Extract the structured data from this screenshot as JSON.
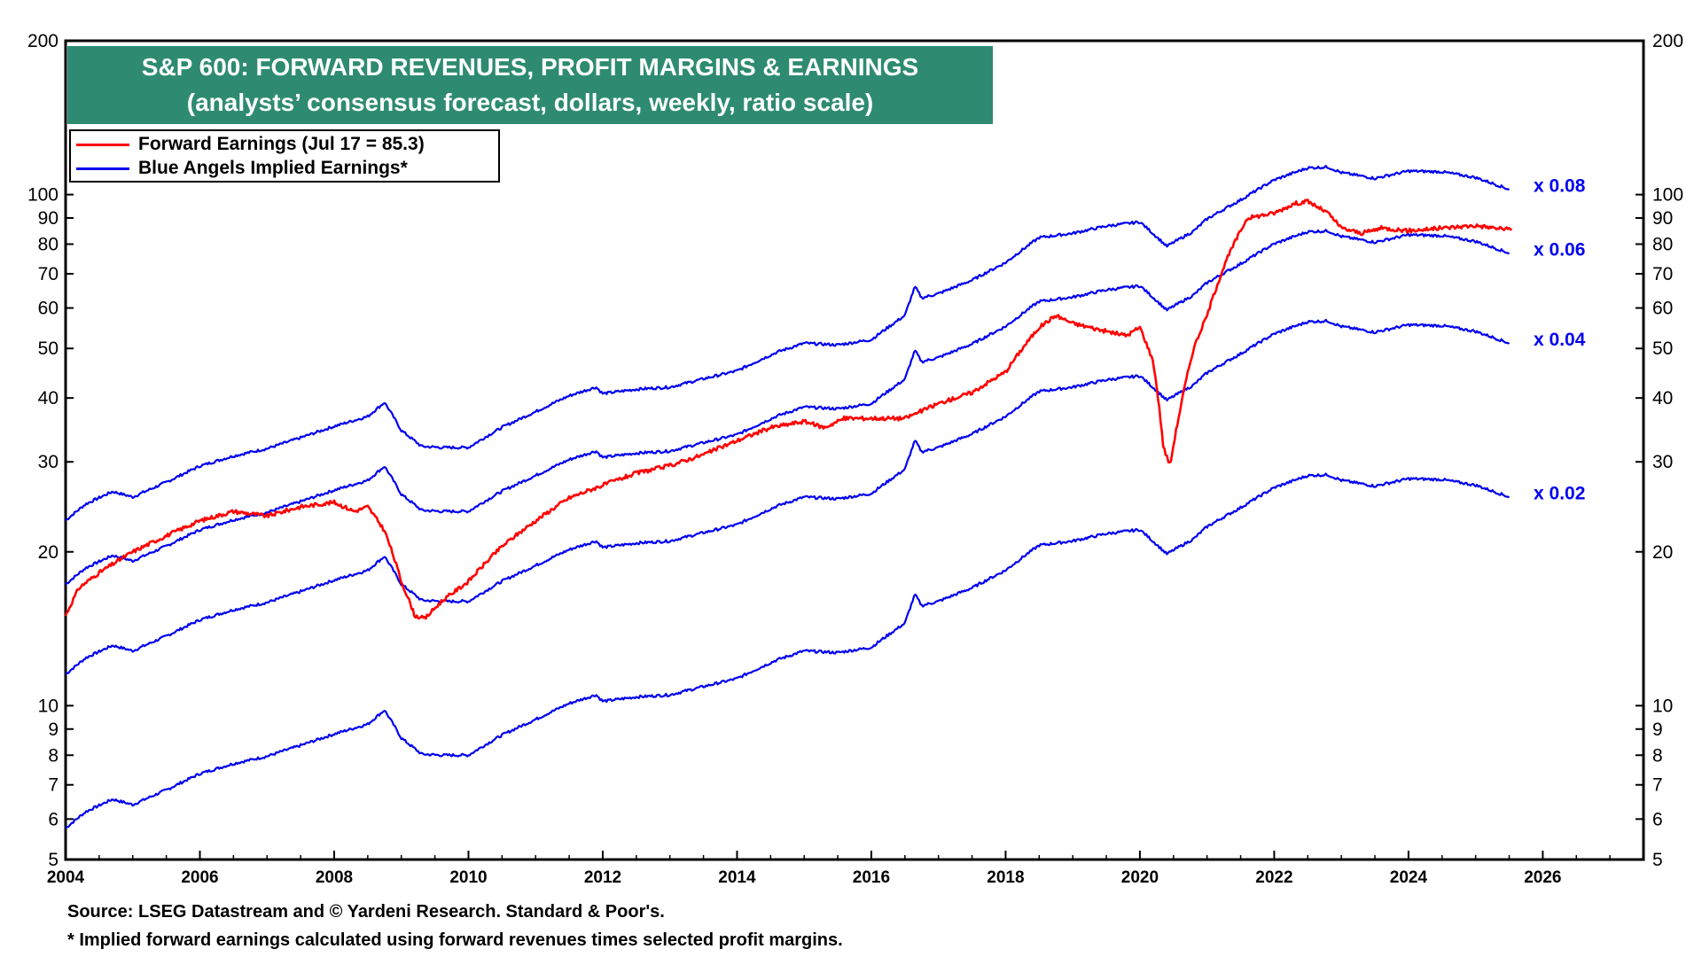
{
  "title": {
    "line1": "S&P 600: FORWARD REVENUES, PROFIT MARGINS & EARNINGS",
    "line2": "(analysts’ consensus forecast, dollars, weekly, ratio scale)"
  },
  "legend": [
    {
      "label": "Forward Earnings (Jul 17 = 85.3)",
      "color": "#ff0000"
    },
    {
      "label": "Blue Angels Implied Earnings*",
      "color": "#0000ee"
    }
  ],
  "footnotes": {
    "source": "Source: LSEG Datastream and © Yardeni Research. Standard & Poor's.",
    "note": "* Implied forward earnings calculated using forward revenues times selected profit margins."
  },
  "chart_data": {
    "type": "line",
    "scale": "log",
    "xlim": [
      2004,
      2027.5
    ],
    "ylim": [
      5,
      200
    ],
    "grid": false,
    "legend_position": "top-left",
    "x_ticks": [
      "2004",
      "2006",
      "2008",
      "2010",
      "2012",
      "2014",
      "2016",
      "2018",
      "2020",
      "2022",
      "2024",
      "2026"
    ],
    "y_ticks": [
      "5",
      "6",
      "7",
      "8",
      "9",
      "10",
      "20",
      "30",
      "40",
      "50",
      "60",
      "70",
      "80",
      "90",
      "100",
      "200"
    ],
    "forward_revenues_per_share": {
      "x": [
        2004.0,
        2004.3,
        2004.7,
        2005.0,
        2005.5,
        2006.0,
        2006.5,
        2007.0,
        2007.5,
        2008.0,
        2008.5,
        2008.75,
        2009.0,
        2009.3,
        2009.6,
        2010.0,
        2010.5,
        2011.0,
        2011.5,
        2011.9,
        2012.0,
        2012.5,
        2013.0,
        2013.5,
        2014.0,
        2014.6,
        2015.0,
        2015.5,
        2016.0,
        2016.5,
        2016.65,
        2016.75,
        2017.0,
        2017.5,
        2018.0,
        2018.5,
        2019.0,
        2019.5,
        2020.0,
        2020.4,
        2020.8,
        2021.0,
        2021.5,
        2022.0,
        2022.5,
        2022.8,
        2023.0,
        2023.5,
        2024.0,
        2024.5,
        2025.0,
        2025.5
      ],
      "y": [
        288,
        310,
        328,
        320,
        342,
        368,
        385,
        398,
        418,
        440,
        460,
        490,
        432,
        402,
        400,
        400,
        438,
        470,
        505,
        525,
        510,
        520,
        525,
        545,
        565,
        615,
        640,
        635,
        650,
        725,
        825,
        785,
        800,
        850,
        920,
        1030,
        1050,
        1085,
        1105,
        990,
        1060,
        1120,
        1220,
        1335,
        1410,
        1415,
        1380,
        1345,
        1390,
        1385,
        1350,
        1280
      ]
    },
    "series": [
      {
        "name": "Forward Earnings (Jul 17 = 85.3)",
        "color": "#ff0000",
        "x": [
          2004.0,
          2004.2,
          2004.5,
          2005.0,
          2005.5,
          2006.0,
          2006.5,
          2007.0,
          2007.5,
          2008.0,
          2008.3,
          2008.5,
          2008.75,
          2009.0,
          2009.2,
          2009.35,
          2009.6,
          2010.0,
          2010.5,
          2011.0,
          2011.5,
          2012.0,
          2012.5,
          2013.0,
          2013.5,
          2014.0,
          2014.5,
          2015.0,
          2015.3,
          2015.6,
          2016.0,
          2016.5,
          2017.0,
          2017.5,
          2018.0,
          2018.5,
          2018.75,
          2019.0,
          2019.5,
          2019.8,
          2020.0,
          2020.2,
          2020.35,
          2020.45,
          2020.6,
          2020.8,
          2021.0,
          2021.3,
          2021.6,
          2022.0,
          2022.3,
          2022.5,
          2022.8,
          2023.0,
          2023.3,
          2023.6,
          2024.0,
          2024.5,
          2025.0,
          2025.3,
          2025.55
        ],
        "y": [
          15.0,
          17.0,
          18.2,
          20.0,
          21.5,
          23.0,
          24.0,
          23.5,
          24.5,
          25.0,
          24.0,
          24.5,
          22.0,
          17.5,
          15.0,
          14.8,
          16.0,
          17.5,
          20.5,
          23.0,
          25.5,
          27.0,
          28.5,
          29.5,
          31.0,
          33.0,
          35.0,
          36.0,
          35.0,
          36.5,
          36.5,
          36.5,
          39.0,
          41.0,
          45.0,
          55.0,
          58.0,
          56.0,
          54.0,
          53.0,
          55.0,
          47.0,
          32.0,
          29.5,
          38.0,
          50.0,
          58.0,
          75.0,
          90.0,
          92.0,
          96.0,
          97.0,
          92.0,
          86.0,
          84.0,
          86.0,
          85.0,
          86.0,
          87.0,
          86.0,
          85.3
        ]
      },
      {
        "name": "Blue Angels Implied Earnings*",
        "multiplier": 0.08,
        "label": "x 0.08",
        "color": "#0000ee"
      },
      {
        "name": "Blue Angels Implied Earnings*",
        "multiplier": 0.06,
        "label": "x 0.06",
        "color": "#0000ee"
      },
      {
        "name": "Blue Angels Implied Earnings*",
        "multiplier": 0.04,
        "label": "x 0.04",
        "color": "#0000ee"
      },
      {
        "name": "Blue Angels Implied Earnings*",
        "multiplier": 0.02,
        "label": "x 0.02",
        "color": "#0000ee"
      }
    ]
  }
}
